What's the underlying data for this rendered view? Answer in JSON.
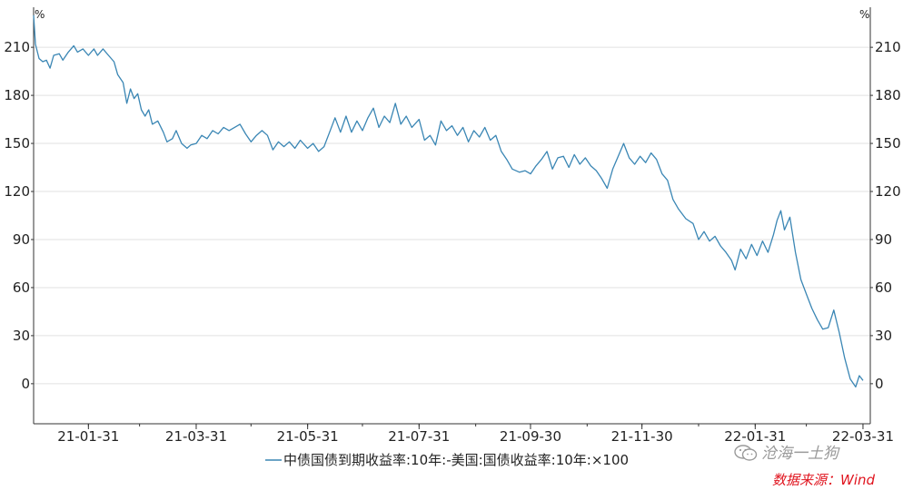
{
  "chart_data": {
    "type": "line",
    "title": "",
    "unit_left": "%",
    "unit_right": "%",
    "ylim": [
      -25,
      235
    ],
    "y_ticks": [
      0,
      30,
      60,
      90,
      120,
      150,
      180,
      210
    ],
    "x_range": [
      "2021-01-01",
      "2022-04-04"
    ],
    "x_tick_labels": [
      "21-01-31",
      "21-03-31",
      "21-05-31",
      "21-07-31",
      "21-09-30",
      "21-11-30",
      "22-01-31",
      "22-03-31"
    ],
    "x_tick_dates": [
      "2021-01-31",
      "2021-03-31",
      "2021-05-31",
      "2021-07-31",
      "2021-09-30",
      "2021-11-30",
      "2022-01-31",
      "2022-03-31"
    ],
    "grid": true,
    "legend_position": "bottom",
    "series": [
      {
        "name": "中债国债到期收益率:10年:-美国:国债收益率:10年:×100",
        "color": "#3a86b4",
        "points": [
          [
            "2021-01-01",
            230
          ],
          [
            "2021-01-02",
            212
          ],
          [
            "2021-01-04",
            203
          ],
          [
            "2021-01-06",
            201
          ],
          [
            "2021-01-08",
            202
          ],
          [
            "2021-01-10",
            197
          ],
          [
            "2021-01-12",
            205
          ],
          [
            "2021-01-15",
            206
          ],
          [
            "2021-01-17",
            202
          ],
          [
            "2021-01-20",
            207
          ],
          [
            "2021-01-23",
            211
          ],
          [
            "2021-01-25",
            207
          ],
          [
            "2021-01-28",
            209
          ],
          [
            "2021-01-31",
            205
          ],
          [
            "2021-02-03",
            209
          ],
          [
            "2021-02-05",
            205
          ],
          [
            "2021-02-08",
            209
          ],
          [
            "2021-02-11",
            205
          ],
          [
            "2021-02-14",
            201
          ],
          [
            "2021-02-16",
            193
          ],
          [
            "2021-02-19",
            188
          ],
          [
            "2021-02-21",
            175
          ],
          [
            "2021-02-23",
            184
          ],
          [
            "2021-02-25",
            178
          ],
          [
            "2021-02-27",
            181
          ],
          [
            "2021-03-01",
            171
          ],
          [
            "2021-03-03",
            167
          ],
          [
            "2021-03-05",
            171
          ],
          [
            "2021-03-07",
            162
          ],
          [
            "2021-03-10",
            164
          ],
          [
            "2021-03-13",
            157
          ],
          [
            "2021-03-15",
            151
          ],
          [
            "2021-03-18",
            153
          ],
          [
            "2021-03-20",
            158
          ],
          [
            "2021-03-23",
            150
          ],
          [
            "2021-03-26",
            147
          ],
          [
            "2021-03-28",
            149
          ],
          [
            "2021-03-31",
            150
          ],
          [
            "2021-04-03",
            155
          ],
          [
            "2021-04-06",
            153
          ],
          [
            "2021-04-09",
            158
          ],
          [
            "2021-04-12",
            156
          ],
          [
            "2021-04-15",
            160
          ],
          [
            "2021-04-18",
            158
          ],
          [
            "2021-04-21",
            160
          ],
          [
            "2021-04-24",
            162
          ],
          [
            "2021-04-27",
            156
          ],
          [
            "2021-04-30",
            151
          ],
          [
            "2021-05-03",
            155
          ],
          [
            "2021-05-06",
            158
          ],
          [
            "2021-05-09",
            155
          ],
          [
            "2021-05-12",
            146
          ],
          [
            "2021-05-15",
            151
          ],
          [
            "2021-05-18",
            148
          ],
          [
            "2021-05-21",
            151
          ],
          [
            "2021-05-24",
            147
          ],
          [
            "2021-05-27",
            152
          ],
          [
            "2021-05-31",
            147
          ],
          [
            "2021-06-03",
            150
          ],
          [
            "2021-06-06",
            145
          ],
          [
            "2021-06-09",
            148
          ],
          [
            "2021-06-12",
            157
          ],
          [
            "2021-06-15",
            166
          ],
          [
            "2021-06-18",
            157
          ],
          [
            "2021-06-21",
            167
          ],
          [
            "2021-06-24",
            157
          ],
          [
            "2021-06-27",
            164
          ],
          [
            "2021-06-30",
            158
          ],
          [
            "2021-07-03",
            166
          ],
          [
            "2021-07-06",
            172
          ],
          [
            "2021-07-09",
            160
          ],
          [
            "2021-07-12",
            167
          ],
          [
            "2021-07-15",
            163
          ],
          [
            "2021-07-18",
            175
          ],
          [
            "2021-07-21",
            162
          ],
          [
            "2021-07-24",
            167
          ],
          [
            "2021-07-27",
            160
          ],
          [
            "2021-07-31",
            165
          ],
          [
            "2021-08-03",
            152
          ],
          [
            "2021-08-06",
            155
          ],
          [
            "2021-08-09",
            149
          ],
          [
            "2021-08-12",
            164
          ],
          [
            "2021-08-15",
            158
          ],
          [
            "2021-08-18",
            161
          ],
          [
            "2021-08-21",
            155
          ],
          [
            "2021-08-24",
            160
          ],
          [
            "2021-08-27",
            151
          ],
          [
            "2021-08-30",
            158
          ],
          [
            "2021-09-02",
            154
          ],
          [
            "2021-09-05",
            160
          ],
          [
            "2021-09-08",
            152
          ],
          [
            "2021-09-11",
            155
          ],
          [
            "2021-09-14",
            145
          ],
          [
            "2021-09-17",
            140
          ],
          [
            "2021-09-20",
            134
          ],
          [
            "2021-09-24",
            132
          ],
          [
            "2021-09-27",
            133
          ],
          [
            "2021-09-30",
            131
          ],
          [
            "2021-10-03",
            136
          ],
          [
            "2021-10-06",
            140
          ],
          [
            "2021-10-09",
            145
          ],
          [
            "2021-10-12",
            134
          ],
          [
            "2021-10-15",
            141
          ],
          [
            "2021-10-18",
            142
          ],
          [
            "2021-10-21",
            135
          ],
          [
            "2021-10-24",
            143
          ],
          [
            "2021-10-27",
            137
          ],
          [
            "2021-10-30",
            141
          ],
          [
            "2021-11-02",
            136
          ],
          [
            "2021-11-05",
            133
          ],
          [
            "2021-11-08",
            128
          ],
          [
            "2021-11-11",
            122
          ],
          [
            "2021-11-14",
            134
          ],
          [
            "2021-11-17",
            142
          ],
          [
            "2021-11-20",
            150
          ],
          [
            "2021-11-23",
            141
          ],
          [
            "2021-11-26",
            137
          ],
          [
            "2021-11-29",
            142
          ],
          [
            "2021-12-02",
            138
          ],
          [
            "2021-12-05",
            144
          ],
          [
            "2021-12-08",
            140
          ],
          [
            "2021-12-11",
            131
          ],
          [
            "2021-12-14",
            127
          ],
          [
            "2021-12-17",
            115
          ],
          [
            "2021-12-20",
            109
          ],
          [
            "2021-12-24",
            103
          ],
          [
            "2021-12-28",
            100
          ],
          [
            "2021-12-31",
            90
          ],
          [
            "2022-01-03",
            95
          ],
          [
            "2022-01-06",
            89
          ],
          [
            "2022-01-09",
            92
          ],
          [
            "2022-01-12",
            86
          ],
          [
            "2022-01-15",
            82
          ],
          [
            "2022-01-18",
            77
          ],
          [
            "2022-01-20",
            71
          ],
          [
            "2022-01-23",
            84
          ],
          [
            "2022-01-26",
            78
          ],
          [
            "2022-01-29",
            87
          ],
          [
            "2022-02-01",
            80
          ],
          [
            "2022-02-04",
            89
          ],
          [
            "2022-02-07",
            82
          ],
          [
            "2022-02-10",
            93
          ],
          [
            "2022-02-12",
            102
          ],
          [
            "2022-02-14",
            108
          ],
          [
            "2022-02-16",
            96
          ],
          [
            "2022-02-19",
            104
          ],
          [
            "2022-02-22",
            82
          ],
          [
            "2022-02-25",
            65
          ],
          [
            "2022-02-28",
            56
          ],
          [
            "2022-03-03",
            47
          ],
          [
            "2022-03-06",
            40
          ],
          [
            "2022-03-09",
            34
          ],
          [
            "2022-03-12",
            35
          ],
          [
            "2022-03-15",
            46
          ],
          [
            "2022-03-18",
            32
          ],
          [
            "2022-03-21",
            16
          ],
          [
            "2022-03-24",
            3
          ],
          [
            "2022-03-27",
            -2
          ],
          [
            "2022-03-29",
            5
          ],
          [
            "2022-03-31",
            2
          ]
        ]
      }
    ]
  },
  "legend": {
    "label": "中债国债到期收益率:10年:-美国:国债收益率:10年:×100"
  },
  "watermark": {
    "text": "沧海一土狗"
  },
  "source": {
    "text": "数据来源：Wind"
  }
}
